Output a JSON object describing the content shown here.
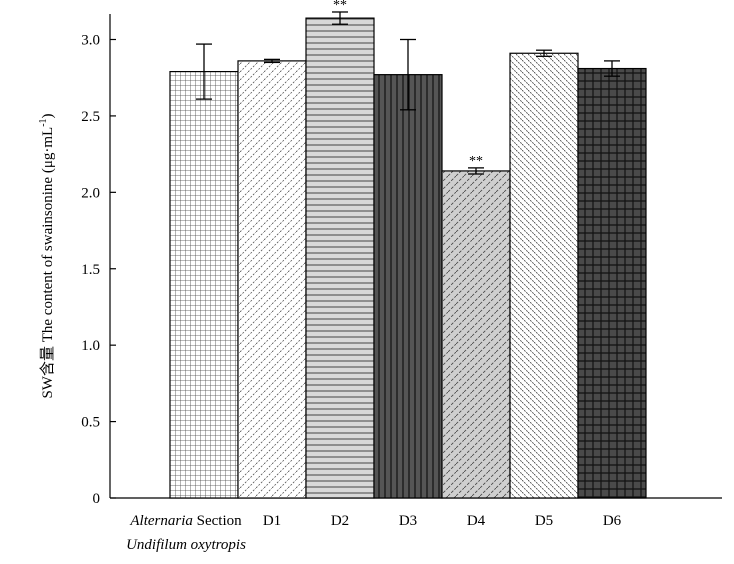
{
  "chart_data": {
    "type": "bar",
    "ylabel_prefix": "SW含量 ",
    "ylabel_main": "The content of swainsonine (μg·mL",
    "ylabel_sup": "-1",
    "ylabel_end": ")",
    "ylim": [
      0,
      3.3
    ],
    "yticks": [
      "0",
      "0.5",
      "1.0",
      "1.5",
      "2.0",
      "2.5",
      "3.0"
    ],
    "categories": [
      {
        "line1_italic": "Alternaria",
        "line1_rest": " Section",
        "line2_italic": "Undifilum oxytropis"
      },
      {
        "label": "D1"
      },
      {
        "label": "D2"
      },
      {
        "label": "D3"
      },
      {
        "label": "D4"
      },
      {
        "label": "D5"
      },
      {
        "label": "D6"
      }
    ],
    "values": [
      2.79,
      2.86,
      3.14,
      2.77,
      2.14,
      2.91,
      2.81
    ],
    "errors": [
      0.18,
      0.01,
      0.04,
      0.23,
      0.02,
      0.02,
      0.05
    ],
    "significance": [
      "",
      "",
      "**",
      "",
      "**",
      "",
      ""
    ],
    "patterns": [
      "fine-grid",
      "diagonal-dashed",
      "horizontal-lines",
      "dark-vertical",
      "gray-diagonal",
      "diagonal-dense-dashed",
      "dark-grid"
    ]
  }
}
